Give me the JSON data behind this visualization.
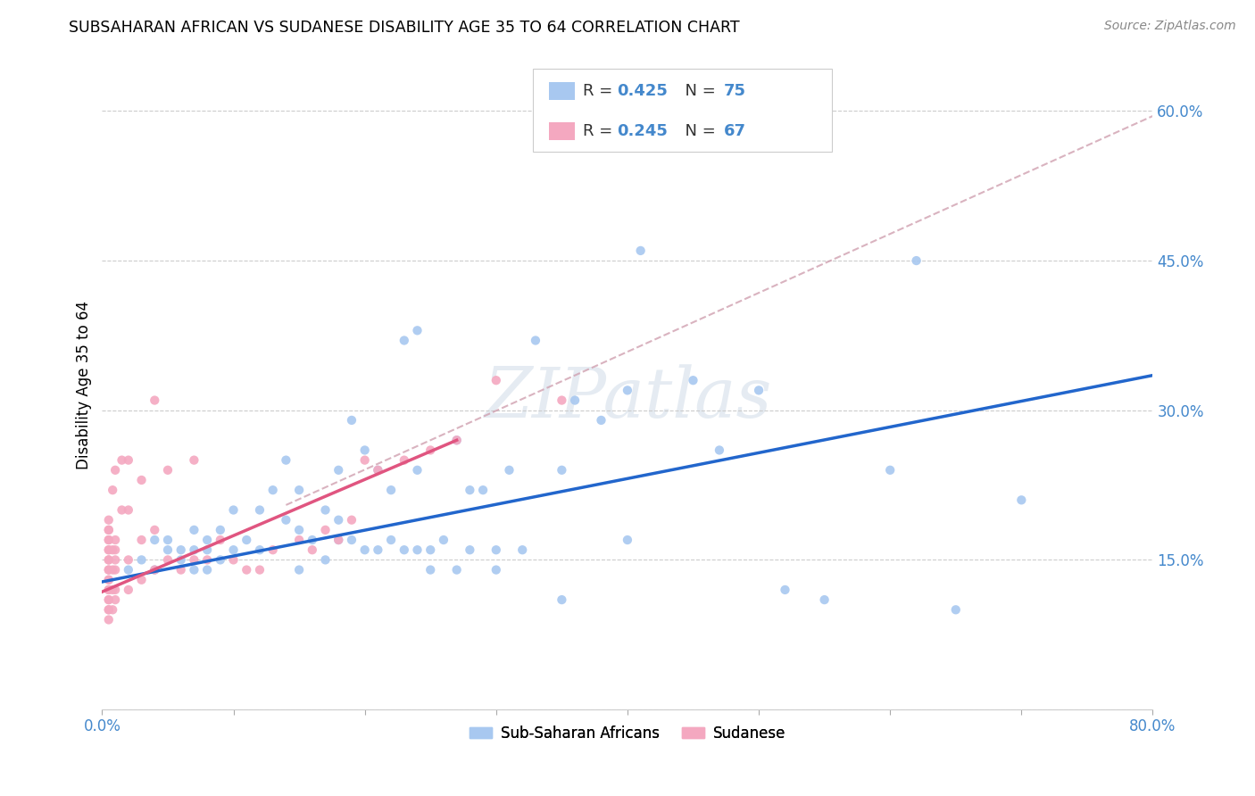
{
  "title": "SUBSAHARAN AFRICAN VS SUDANESE DISABILITY AGE 35 TO 64 CORRELATION CHART",
  "source": "Source: ZipAtlas.com",
  "ylabel": "Disability Age 35 to 64",
  "xlim": [
    0.0,
    0.8
  ],
  "ylim": [
    0.0,
    0.65
  ],
  "xticks": [
    0.0,
    0.1,
    0.2,
    0.3,
    0.4,
    0.5,
    0.6,
    0.7,
    0.8
  ],
  "yticks": [
    0.0,
    0.15,
    0.3,
    0.45,
    0.6
  ],
  "blue_R": 0.425,
  "blue_N": 75,
  "pink_R": 0.245,
  "pink_N": 67,
  "blue_color": "#a8c8f0",
  "pink_color": "#f4a8c0",
  "blue_line_color": "#2266cc",
  "pink_line_color": "#e05580",
  "dashed_line_color": "#d0a0b0",
  "tick_color": "#4488cc",
  "watermark": "ZIPatlas",
  "legend_label_blue": "Sub-Saharan Africans",
  "legend_label_pink": "Sudanese",
  "blue_scatter_x": [
    0.02,
    0.03,
    0.04,
    0.04,
    0.05,
    0.05,
    0.06,
    0.06,
    0.07,
    0.07,
    0.07,
    0.08,
    0.08,
    0.08,
    0.09,
    0.09,
    0.1,
    0.1,
    0.11,
    0.12,
    0.12,
    0.13,
    0.14,
    0.14,
    0.15,
    0.15,
    0.15,
    0.16,
    0.17,
    0.17,
    0.18,
    0.18,
    0.18,
    0.19,
    0.19,
    0.2,
    0.2,
    0.21,
    0.21,
    0.22,
    0.22,
    0.23,
    0.23,
    0.24,
    0.24,
    0.24,
    0.25,
    0.25,
    0.26,
    0.27,
    0.27,
    0.28,
    0.28,
    0.29,
    0.3,
    0.3,
    0.31,
    0.32,
    0.33,
    0.35,
    0.35,
    0.36,
    0.38,
    0.4,
    0.4,
    0.41,
    0.45,
    0.47,
    0.5,
    0.52,
    0.55,
    0.6,
    0.62,
    0.65,
    0.7
  ],
  "blue_scatter_y": [
    0.14,
    0.15,
    0.14,
    0.17,
    0.16,
    0.17,
    0.15,
    0.16,
    0.14,
    0.16,
    0.18,
    0.14,
    0.16,
    0.17,
    0.15,
    0.18,
    0.16,
    0.2,
    0.17,
    0.16,
    0.2,
    0.22,
    0.25,
    0.19,
    0.14,
    0.18,
    0.22,
    0.17,
    0.15,
    0.2,
    0.17,
    0.19,
    0.24,
    0.17,
    0.29,
    0.16,
    0.26,
    0.16,
    0.24,
    0.17,
    0.22,
    0.16,
    0.37,
    0.16,
    0.24,
    0.38,
    0.16,
    0.14,
    0.17,
    0.14,
    0.27,
    0.16,
    0.22,
    0.22,
    0.14,
    0.16,
    0.24,
    0.16,
    0.37,
    0.24,
    0.11,
    0.31,
    0.29,
    0.32,
    0.17,
    0.46,
    0.33,
    0.26,
    0.32,
    0.12,
    0.11,
    0.24,
    0.45,
    0.1,
    0.21
  ],
  "pink_scatter_x": [
    0.005,
    0.005,
    0.005,
    0.005,
    0.005,
    0.005,
    0.005,
    0.005,
    0.005,
    0.005,
    0.005,
    0.005,
    0.005,
    0.005,
    0.005,
    0.005,
    0.005,
    0.005,
    0.005,
    0.005,
    0.008,
    0.008,
    0.008,
    0.008,
    0.008,
    0.01,
    0.01,
    0.01,
    0.01,
    0.01,
    0.01,
    0.01,
    0.015,
    0.015,
    0.02,
    0.02,
    0.02,
    0.02,
    0.03,
    0.03,
    0.03,
    0.04,
    0.04,
    0.04,
    0.05,
    0.05,
    0.06,
    0.07,
    0.07,
    0.08,
    0.09,
    0.1,
    0.11,
    0.12,
    0.13,
    0.15,
    0.16,
    0.17,
    0.18,
    0.19,
    0.2,
    0.21,
    0.23,
    0.25,
    0.27,
    0.3,
    0.35
  ],
  "pink_scatter_y": [
    0.09,
    0.1,
    0.1,
    0.11,
    0.11,
    0.12,
    0.12,
    0.13,
    0.13,
    0.14,
    0.14,
    0.15,
    0.15,
    0.16,
    0.16,
    0.17,
    0.17,
    0.18,
    0.18,
    0.19,
    0.1,
    0.12,
    0.14,
    0.16,
    0.22,
    0.11,
    0.12,
    0.14,
    0.15,
    0.16,
    0.17,
    0.24,
    0.2,
    0.25,
    0.12,
    0.15,
    0.2,
    0.25,
    0.13,
    0.17,
    0.23,
    0.14,
    0.18,
    0.31,
    0.15,
    0.24,
    0.14,
    0.15,
    0.25,
    0.15,
    0.17,
    0.15,
    0.14,
    0.14,
    0.16,
    0.17,
    0.16,
    0.18,
    0.17,
    0.19,
    0.25,
    0.24,
    0.25,
    0.26,
    0.27,
    0.33,
    0.31
  ],
  "blue_line_x": [
    0.0,
    0.8
  ],
  "blue_line_y": [
    0.128,
    0.335
  ],
  "pink_line_x": [
    0.0,
    0.27
  ],
  "pink_line_y": [
    0.118,
    0.27
  ],
  "dashed_line_x": [
    0.14,
    0.8
  ],
  "dashed_line_y": [
    0.205,
    0.595
  ]
}
